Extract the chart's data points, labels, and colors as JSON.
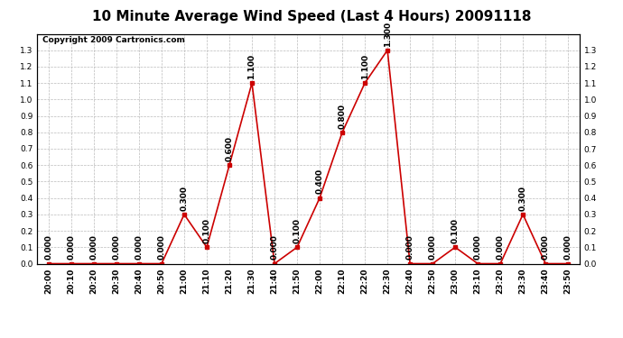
{
  "title": "10 Minute Average Wind Speed (Last 4 Hours) 20091118",
  "copyright": "Copyright 2009 Cartronics.com",
  "x_labels": [
    "20:00",
    "20:10",
    "20:20",
    "20:30",
    "20:40",
    "20:50",
    "21:00",
    "21:10",
    "21:20",
    "21:30",
    "21:40",
    "21:50",
    "22:00",
    "22:10",
    "22:20",
    "22:30",
    "22:40",
    "22:50",
    "23:00",
    "23:10",
    "23:20",
    "23:30",
    "23:40",
    "23:50"
  ],
  "y_values": [
    0.0,
    0.0,
    0.0,
    0.0,
    0.0,
    0.0,
    0.3,
    0.1,
    0.6,
    1.1,
    0.0,
    0.1,
    0.4,
    0.8,
    1.1,
    1.3,
    0.0,
    0.0,
    0.1,
    0.0,
    0.0,
    0.3,
    0.0,
    0.0
  ],
  "line_color": "#cc0000",
  "marker_color": "#cc0000",
  "bg_color": "#ffffff",
  "grid_color": "#bbbbbb",
  "ylim": [
    0.0,
    1.4
  ],
  "yticks": [
    0.0,
    0.1,
    0.2,
    0.3,
    0.4,
    0.5,
    0.6,
    0.7,
    0.8,
    0.9,
    1.0,
    1.1,
    1.2,
    1.3
  ],
  "title_fontsize": 11,
  "annotation_fontsize": 6.5,
  "copyright_fontsize": 6.5,
  "tick_fontsize": 6.5
}
